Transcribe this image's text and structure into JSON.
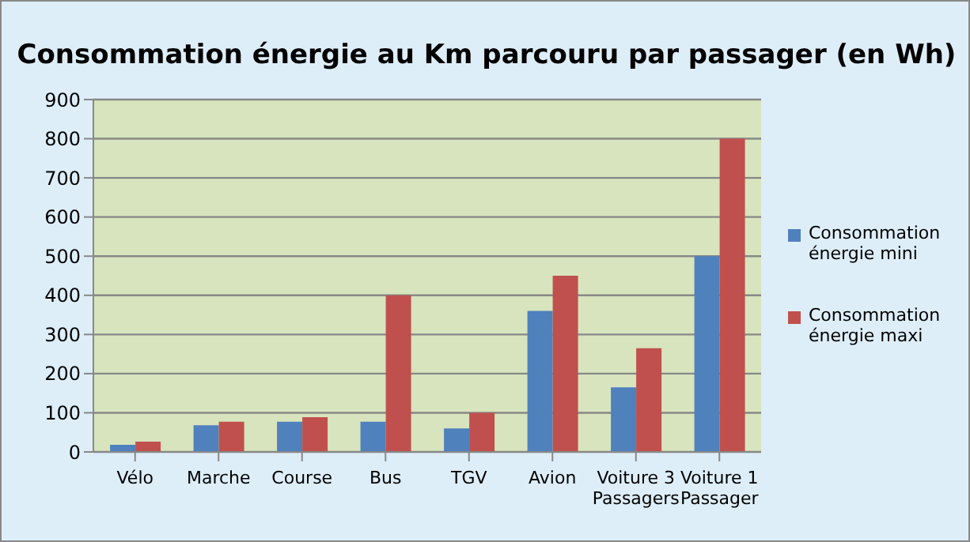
{
  "chart_data": {
    "type": "bar",
    "title": "Consommation énergie au Km parcouru par passager  (en Wh)",
    "categories": [
      "Vélo",
      "Marche",
      "Course",
      "Bus",
      "TGV",
      "Avion",
      "Voiture 3 Passagers",
      "Voiture 1 Passager"
    ],
    "series": [
      {
        "name": "Consommation énergie mini",
        "color": "#4f81bd",
        "values": [
          18,
          68,
          77,
          77,
          60,
          360,
          165,
          500
        ]
      },
      {
        "name": "Consommation énergie maxi",
        "color": "#c0504d",
        "values": [
          26,
          77,
          89,
          400,
          100,
          450,
          265,
          800
        ]
      }
    ],
    "ylim": [
      0,
      900
    ],
    "yticks": [
      0,
      100,
      200,
      300,
      400,
      500,
      600,
      700,
      800,
      900
    ],
    "grid": "y",
    "legend": "right"
  }
}
